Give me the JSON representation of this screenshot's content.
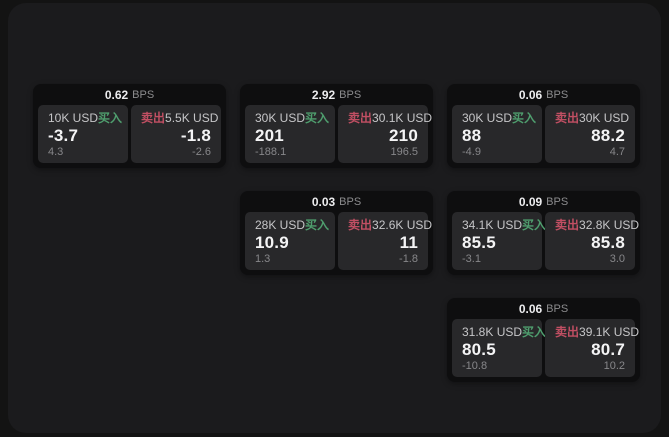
{
  "labels": {
    "bps": "BPS",
    "buy": "买入",
    "sell": "卖出"
  },
  "colors": {
    "page_bg": "#131313",
    "screen_bg": "#1b1b1d",
    "card_bg": "#0e0e0f",
    "panel_bg": "#28282a",
    "buy": "#4f9e6e",
    "sell": "#c14f63"
  },
  "cards": [
    {
      "bps": "0.62",
      "buy": {
        "size": "10K USD",
        "price": "-3.7",
        "delta": "4.3"
      },
      "sell": {
        "size": "5.5K USD",
        "price": "-1.8",
        "delta": "-2.6"
      }
    },
    {
      "bps": "2.92",
      "buy": {
        "size": "30K USD",
        "price": "201",
        "delta": "-188.1"
      },
      "sell": {
        "size": "30.1K USD",
        "price": "210",
        "delta": "196.5"
      }
    },
    {
      "bps": "0.06",
      "buy": {
        "size": "30K USD",
        "price": "88",
        "delta": "-4.9"
      },
      "sell": {
        "size": "30K USD",
        "price": "88.2",
        "delta": "4.7"
      }
    },
    {
      "bps": "0.03",
      "buy": {
        "size": "28K USD",
        "price": "10.9",
        "delta": "1.3"
      },
      "sell": {
        "size": "32.6K USD",
        "price": "11",
        "delta": "-1.8"
      }
    },
    {
      "bps": "0.09",
      "buy": {
        "size": "34.1K USD",
        "price": "85.5",
        "delta": "-3.1"
      },
      "sell": {
        "size": "32.8K USD",
        "price": "85.8",
        "delta": "3.0"
      }
    },
    {
      "bps": "0.06",
      "buy": {
        "size": "31.8K USD",
        "price": "80.5",
        "delta": "-10.8"
      },
      "sell": {
        "size": "39.1K USD",
        "price": "80.7",
        "delta": "10.2"
      }
    }
  ]
}
